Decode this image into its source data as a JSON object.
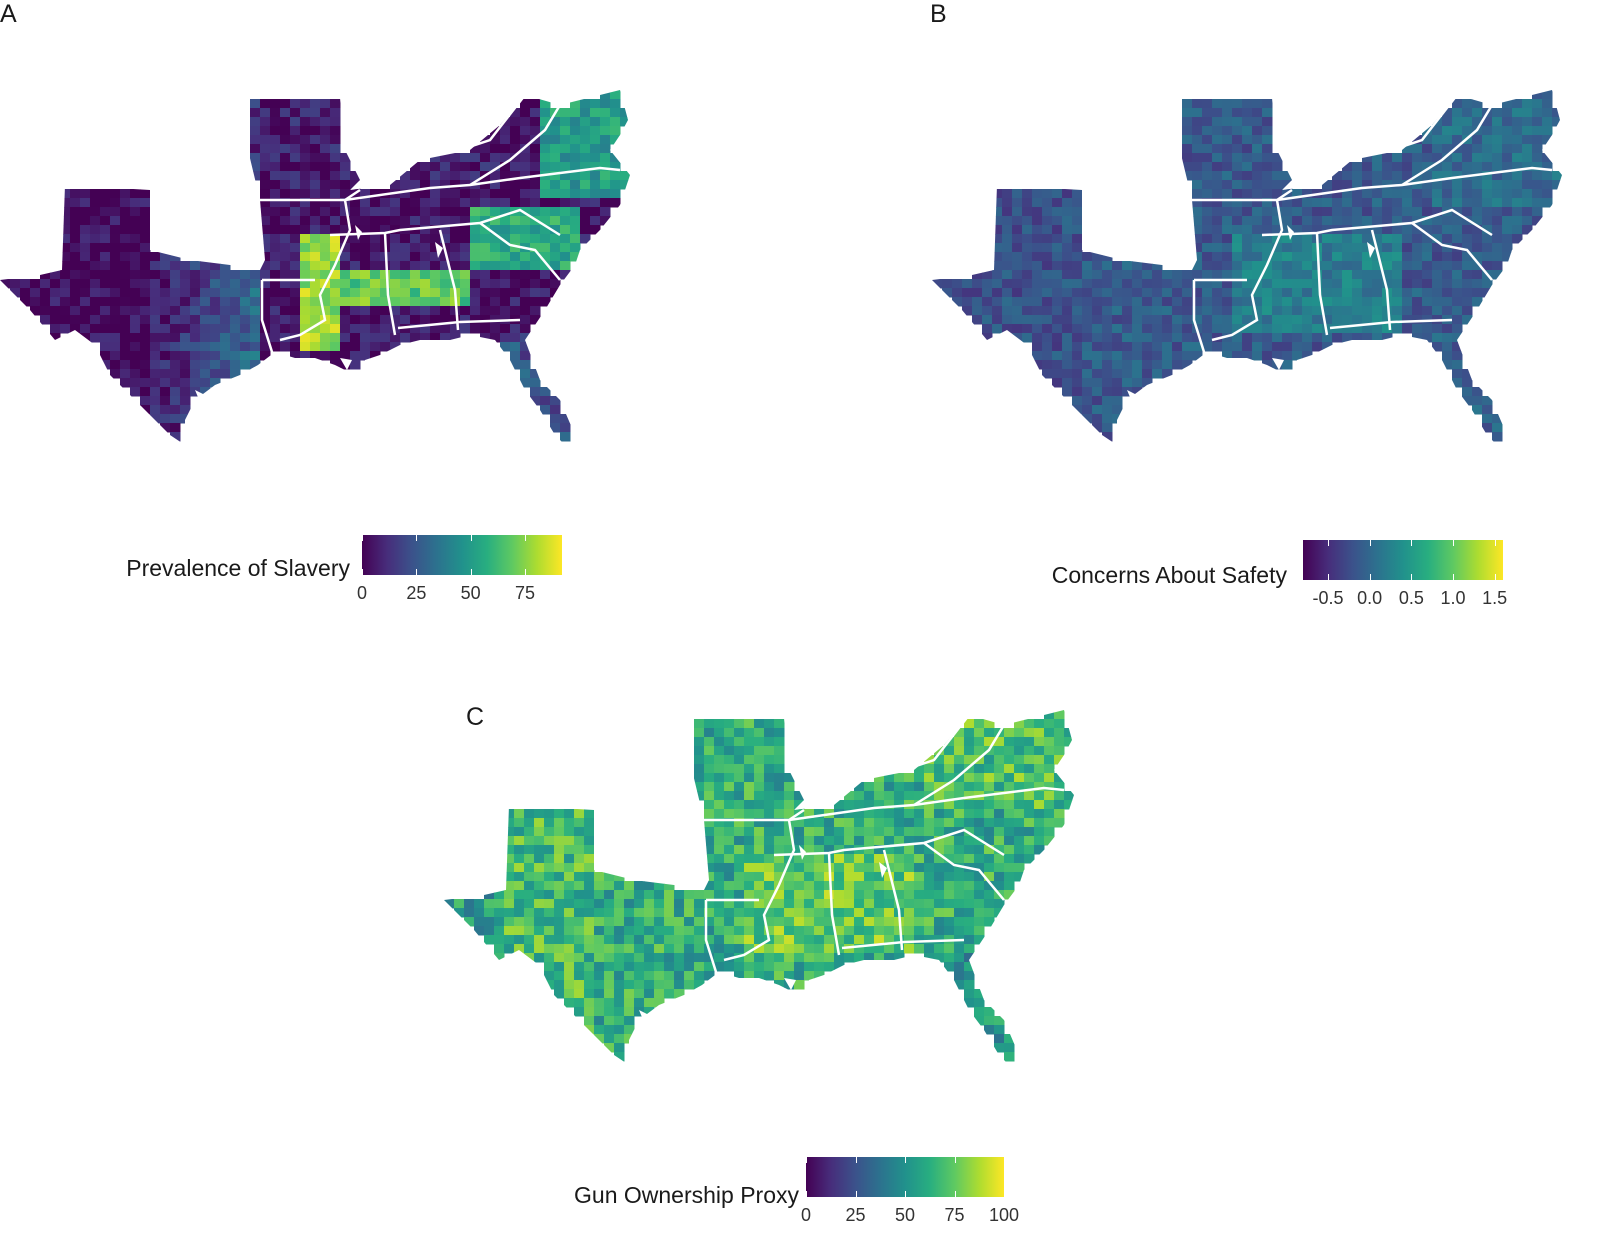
{
  "panels": [
    {
      "id": "a",
      "letter": "A",
      "legend_title": "Prevalence of Slavery",
      "ticks": [
        "0",
        "25",
        "50",
        "75"
      ],
      "tick_values": [
        0,
        25,
        50,
        75
      ],
      "range": [
        0,
        92
      ],
      "colormap": "viridis"
    },
    {
      "id": "b",
      "letter": "B",
      "legend_title": "Concerns About Safety",
      "ticks": [
        "-0.5",
        "0.0",
        "0.5",
        "1.0",
        "1.5"
      ],
      "tick_values": [
        -0.5,
        0.0,
        0.5,
        1.0,
        1.5
      ],
      "range": [
        -0.8,
        1.6
      ],
      "colormap": "viridis"
    },
    {
      "id": "c",
      "letter": "C",
      "legend_title": "Gun Ownership Proxy",
      "ticks": [
        "0",
        "25",
        "50",
        "75",
        "100"
      ],
      "tick_values": [
        0,
        25,
        50,
        75,
        100
      ],
      "range": [
        0,
        100
      ],
      "colormap": "viridis"
    }
  ],
  "colors": {
    "viridis": [
      "#440154",
      "#472d7b",
      "#3b528b",
      "#2c728e",
      "#21918c",
      "#28ae80",
      "#5ec962",
      "#addc30",
      "#fde725"
    ],
    "state_border": "#ffffff"
  }
}
